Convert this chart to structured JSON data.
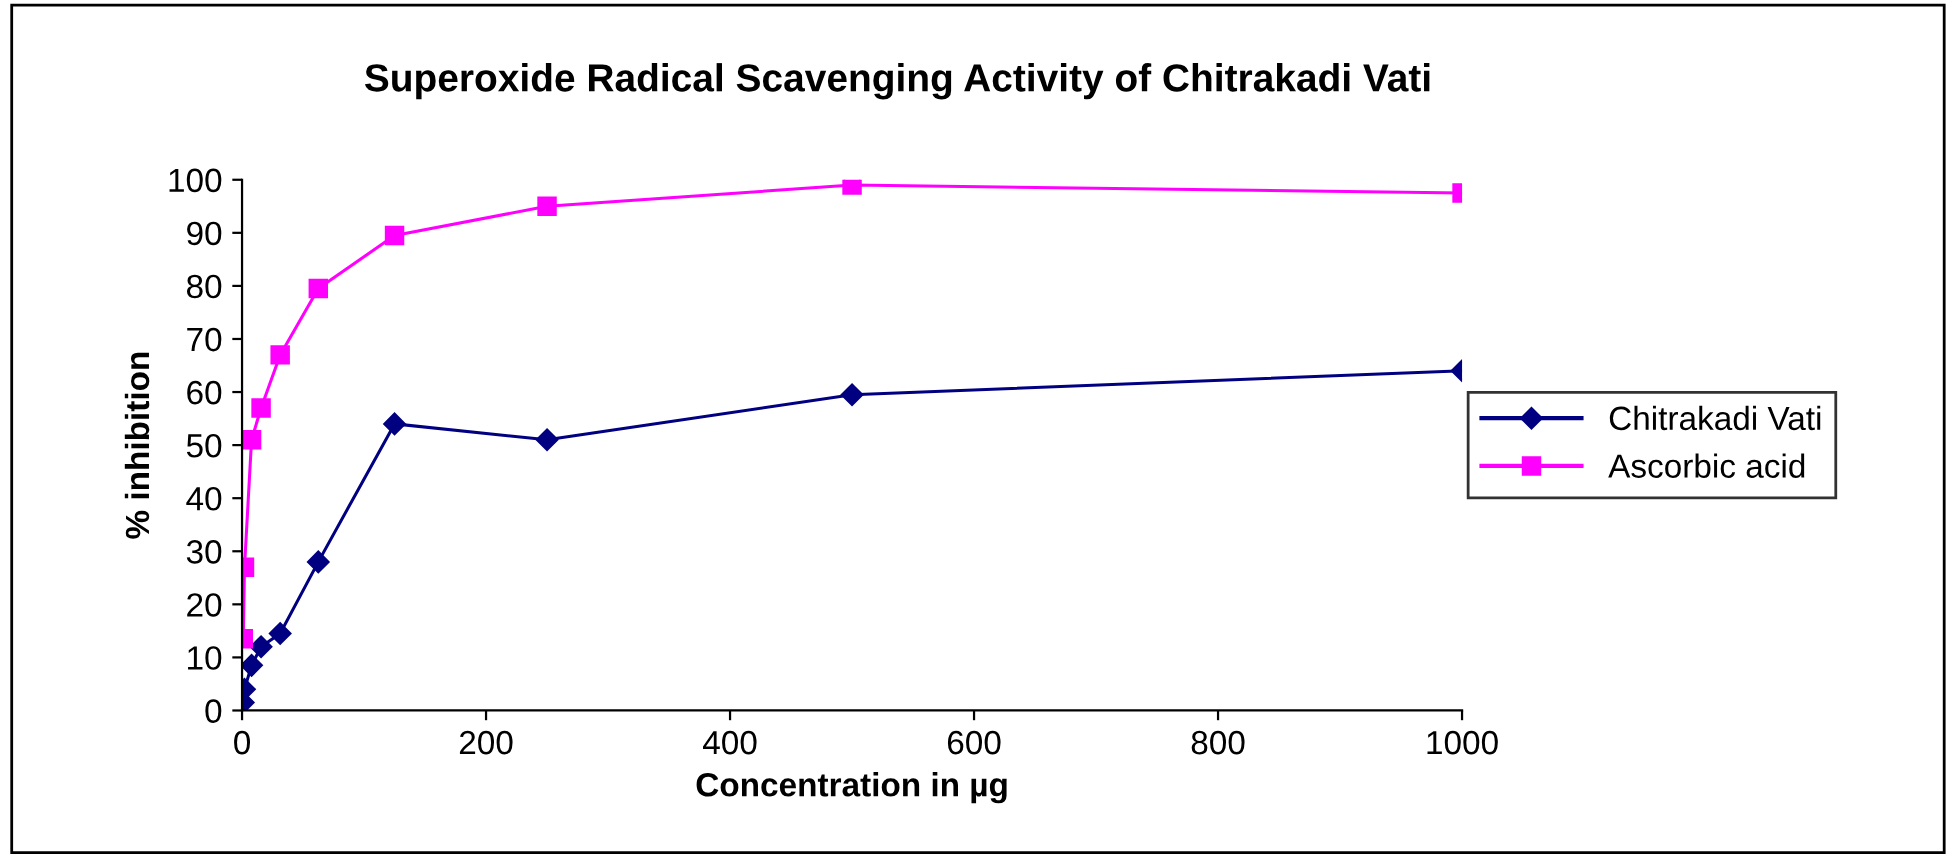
{
  "chart_data": {
    "type": "line",
    "title": "Superoxide Radical Scavenging Activity of Chitrakadi Vati",
    "xlabel": "Concentration in µg",
    "ylabel": "% inhibition",
    "x": [
      1,
      2,
      7.8,
      15.6,
      31.25,
      62.5,
      125,
      250,
      500,
      1000
    ],
    "series": [
      {
        "name": "Chitrakadi Vati",
        "color": "#000080",
        "marker": "diamond",
        "values": [
          1.5,
          4,
          8.5,
          12,
          14.5,
          28,
          54,
          51,
          59.5,
          64
        ]
      },
      {
        "name": "Ascorbic acid",
        "color": "#ff00ff",
        "marker": "square",
        "values": [
          13.5,
          27,
          51,
          57,
          67,
          79.5,
          89.5,
          95,
          99,
          97.5
        ]
      }
    ],
    "xlim": [
      0,
      1000
    ],
    "xticks": [
      0,
      200,
      400,
      600,
      800,
      1000
    ],
    "ylim": [
      0,
      100
    ],
    "yticks": [
      0,
      10,
      20,
      30,
      40,
      50,
      60,
      70,
      80,
      90,
      100
    ],
    "grid": false,
    "legend": "right",
    "line_style": "solid"
  }
}
